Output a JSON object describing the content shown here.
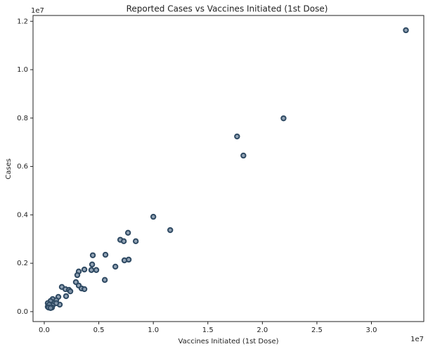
{
  "chart_data": {
    "type": "scatter",
    "title": "Reported Cases vs Vaccines Initiated (1st Dose)",
    "x_label": "Vaccines Initiated (1st Dose)",
    "y_label": "Cases",
    "x_offset_label": "1e7",
    "y_offset_label": "1e7",
    "xlim": [
      -0.103,
      3.48
    ],
    "ylim": [
      -0.041,
      1.224
    ],
    "xticks": [
      {
        "value": 0,
        "label": "0.0"
      },
      0.5,
      {
        "value": 1,
        "label": "1.0"
      },
      1.5,
      {
        "value": 2,
        "label": "2.0"
      },
      2.5,
      {
        "value": 3,
        "label": "3.0"
      }
    ],
    "yticks": [
      {
        "value": 0,
        "label": "0.0"
      },
      0.2,
      0.4,
      0.6,
      0.8,
      {
        "value": 1,
        "label": "1.0"
      },
      1.2
    ],
    "color": "#7f93a8",
    "edgecolor": "#2f4a63",
    "x": [
      3.316,
      2.194,
      1.768,
      1.826,
      1.0,
      1.155,
      0.768,
      0.697,
      0.729,
      0.839,
      0.561,
      0.445,
      0.774,
      0.735,
      0.439,
      0.652,
      0.368,
      0.432,
      0.477,
      0.316,
      0.303,
      0.555,
      0.29,
      0.316,
      0.161,
      0.342,
      0.368,
      0.194,
      0.226,
      0.239,
      0.2,
      0.129,
      0.077,
      0.11,
      0.058,
      0.142,
      0.11,
      0.032,
      0.065,
      0.052,
      0.077,
      0.032,
      0.045,
      0.045,
      0.071,
      0.039,
      0.058
    ],
    "values": [
      1.163,
      0.799,
      0.724,
      0.645,
      0.392,
      0.337,
      0.326,
      0.297,
      0.291,
      0.291,
      0.235,
      0.233,
      0.215,
      0.212,
      0.195,
      0.186,
      0.174,
      0.172,
      0.172,
      0.166,
      0.151,
      0.131,
      0.122,
      0.108,
      0.102,
      0.096,
      0.093,
      0.093,
      0.09,
      0.084,
      0.064,
      0.061,
      0.052,
      0.047,
      0.044,
      0.029,
      0.035,
      0.035,
      0.029,
      0.023,
      0.026,
      0.02,
      0.029,
      0.017,
      0.017,
      0.017,
      0.015
    ]
  }
}
